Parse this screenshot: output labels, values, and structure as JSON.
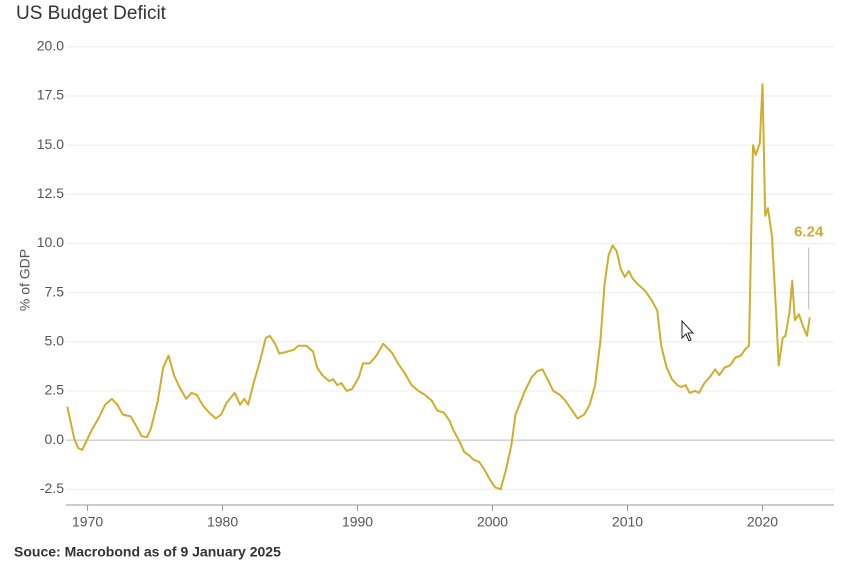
{
  "chart_data": {
    "type": "line",
    "title": "US Budget Deficit",
    "y_label": "% of GDP",
    "source": "Souce: Macrobond  as of 9 January 2025",
    "color": "#cfae2d",
    "grid": true,
    "xlim": [
      1968.4,
      2025.3
    ],
    "ylim": [
      -3.3,
      20.5
    ],
    "xticks": [
      1970,
      1980,
      1990,
      2000,
      2010,
      2020
    ],
    "yticks": [
      {
        "value": 20,
        "label": "20.0"
      },
      {
        "value": 17.5,
        "label": "17.5"
      },
      {
        "value": 15,
        "label": "15.0"
      },
      {
        "value": 12.5,
        "label": "12.5"
      },
      {
        "value": 10,
        "label": "10.0"
      },
      {
        "value": 7.5,
        "label": "7.5"
      },
      {
        "value": 5,
        "label": "5.0"
      },
      {
        "value": 2.5,
        "label": "2.5"
      },
      {
        "value": 0,
        "label": "0.0"
      },
      {
        "value": -2.5,
        "label": "-2.5"
      }
    ],
    "x": [
      1968.5,
      1969.0,
      1969.3,
      1969.6,
      1970.3,
      1970.8,
      1971.3,
      1971.8,
      1972.2,
      1972.6,
      1973.2,
      1973.7,
      1974.0,
      1974.4,
      1974.7,
      1975.2,
      1975.6,
      1976.0,
      1976.4,
      1976.8,
      1977.3,
      1977.7,
      1978.1,
      1978.5,
      1979.0,
      1979.5,
      1979.9,
      1980.3,
      1980.9,
      1981.3,
      1981.6,
      1981.9,
      1982.3,
      1982.8,
      1983.2,
      1983.5,
      1983.9,
      1984.2,
      1984.8,
      1985.3,
      1985.6,
      1986.2,
      1986.7,
      1987.0,
      1987.4,
      1987.9,
      1988.2,
      1988.5,
      1988.8,
      1989.2,
      1989.6,
      1990.1,
      1990.4,
      1990.9,
      1991.4,
      1991.9,
      1992.2,
      1992.6,
      1993.0,
      1993.5,
      1994.0,
      1994.5,
      1995.0,
      1995.5,
      1995.9,
      1996.4,
      1996.8,
      1997.1,
      1997.5,
      1997.9,
      1998.3,
      1998.6,
      1999.0,
      1999.4,
      1999.8,
      2000.2,
      2000.6,
      2001.0,
      2001.4,
      2001.7,
      2002.0,
      2002.4,
      2002.9,
      2003.3,
      2003.7,
      2004.0,
      2004.5,
      2005.0,
      2005.4,
      2005.9,
      2006.3,
      2006.8,
      2007.2,
      2007.6,
      2008.0,
      2008.3,
      2008.6,
      2008.9,
      2009.2,
      2009.5,
      2009.8,
      2010.1,
      2010.4,
      2010.8,
      2011.3,
      2011.8,
      2012.2,
      2012.5,
      2012.9,
      2013.3,
      2013.7,
      2014.0,
      2014.3,
      2014.6,
      2015.0,
      2015.3,
      2015.7,
      2016.1,
      2016.5,
      2016.8,
      2017.2,
      2017.6,
      2018.0,
      2018.4,
      2018.7,
      2019.0,
      2019.3,
      2019.5,
      2019.8,
      2020.0,
      2020.2,
      2020.4,
      2020.7,
      2021.0,
      2021.2,
      2021.5,
      2021.7,
      2022.0,
      2022.2,
      2022.4,
      2022.7,
      2023.0,
      2023.3,
      2023.5
    ],
    "values": [
      1.7,
      0.1,
      -0.4,
      -0.5,
      0.5,
      1.1,
      1.8,
      2.1,
      1.8,
      1.3,
      1.2,
      0.6,
      0.2,
      0.15,
      0.6,
      2.0,
      3.7,
      4.3,
      3.3,
      2.7,
      2.1,
      2.4,
      2.3,
      1.8,
      1.4,
      1.1,
      1.3,
      1.9,
      2.4,
      1.8,
      2.1,
      1.8,
      2.9,
      4.1,
      5.2,
      5.3,
      4.9,
      4.4,
      4.5,
      4.6,
      4.8,
      4.8,
      4.5,
      3.7,
      3.3,
      3.0,
      3.1,
      2.8,
      2.9,
      2.5,
      2.6,
      3.2,
      3.9,
      3.9,
      4.3,
      4.9,
      4.7,
      4.4,
      3.9,
      3.4,
      2.8,
      2.5,
      2.3,
      2.0,
      1.5,
      1.4,
      1.0,
      0.5,
      0.0,
      -0.6,
      -0.8,
      -1.0,
      -1.1,
      -1.5,
      -2.0,
      -2.4,
      -2.5,
      -1.5,
      -0.25,
      1.3,
      1.8,
      2.5,
      3.2,
      3.5,
      3.6,
      3.2,
      2.5,
      2.3,
      2.0,
      1.5,
      1.1,
      1.3,
      1.8,
      2.8,
      5.1,
      7.9,
      9.4,
      9.9,
      9.6,
      8.7,
      8.3,
      8.6,
      8.2,
      7.9,
      7.6,
      7.1,
      6.6,
      4.8,
      3.7,
      3.1,
      2.8,
      2.7,
      2.8,
      2.4,
      2.5,
      2.4,
      2.9,
      3.2,
      3.6,
      3.3,
      3.7,
      3.8,
      4.2,
      4.3,
      4.6,
      4.8,
      15.0,
      14.5,
      15.1,
      18.1,
      11.4,
      11.8,
      10.4,
      6.6,
      3.8,
      5.2,
      5.3,
      6.5,
      8.1,
      6.1,
      6.4,
      5.8,
      5.3,
      6.24
    ],
    "annotations": [
      {
        "x": 2023.5,
        "y": 6.24,
        "label": "6.24"
      }
    ]
  }
}
